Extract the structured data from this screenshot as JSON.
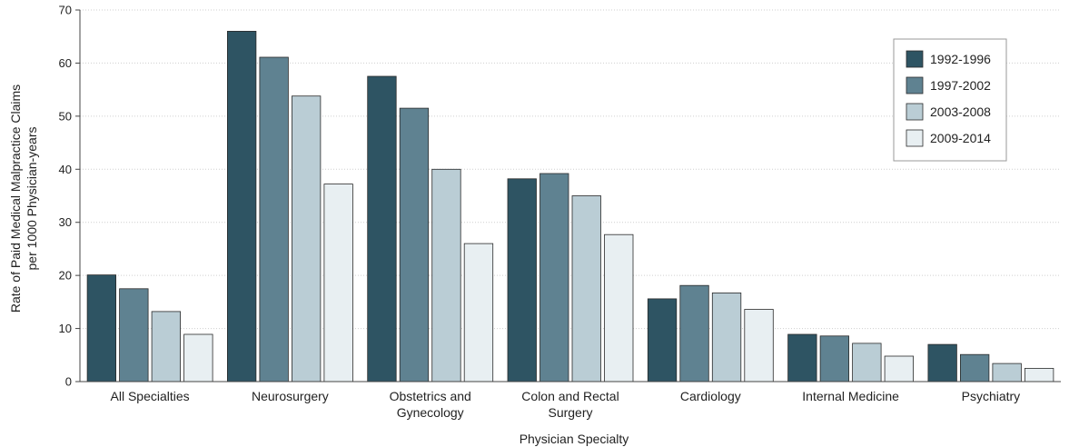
{
  "chart_data": {
    "type": "bar",
    "xlabel": "Physician Specialty",
    "ylabel_lines": [
      "Rate of Paid Medical Malpractice Claims",
      "per 1000 Physician-years"
    ],
    "ylim": [
      0,
      70
    ],
    "yticks": [
      0,
      10,
      20,
      30,
      40,
      50,
      60,
      70
    ],
    "grid": true,
    "legend_position": "top-right",
    "categories": [
      [
        "All Specialties"
      ],
      [
        "Neurosurgery"
      ],
      [
        "Obstetrics and",
        "Gynecology"
      ],
      [
        "Colon and Rectal",
        "Surgery"
      ],
      [
        "Cardiology"
      ],
      [
        "Internal Medicine"
      ],
      [
        "Psychiatry"
      ]
    ],
    "series": [
      {
        "name": "1992-1996",
        "color": "#2e5463",
        "values": [
          20.1,
          66.0,
          57.5,
          38.2,
          15.6,
          8.9,
          7.0
        ]
      },
      {
        "name": "1997-2002",
        "color": "#5f8291",
        "values": [
          17.5,
          61.1,
          51.5,
          39.2,
          18.1,
          8.6,
          5.1
        ]
      },
      {
        "name": "2003-2008",
        "color": "#bacdd5",
        "values": [
          13.2,
          53.8,
          40.0,
          35.0,
          16.7,
          7.2,
          3.4
        ]
      },
      {
        "name": "2009-2014",
        "color": "#e8eff2",
        "values": [
          8.9,
          37.2,
          26.0,
          27.7,
          13.6,
          4.8,
          2.5
        ]
      }
    ]
  }
}
